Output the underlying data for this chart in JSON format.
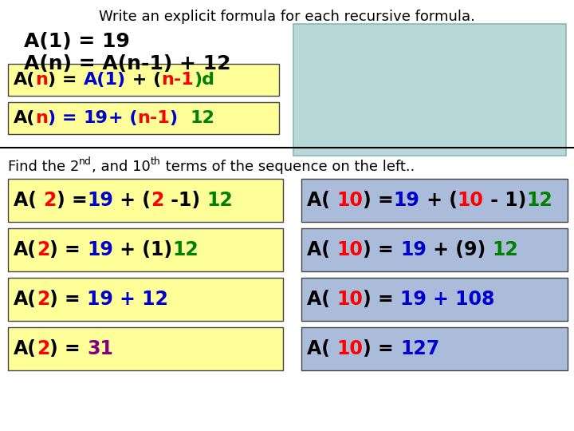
{
  "title": "Write an explicit formula for each recursive formula.",
  "bg_color": "#ffffff",
  "yellow_box_color": "#ffff99",
  "blue_box_color": "#aabcda",
  "light_blue_color": "#b8d8d8",
  "top_lines": [
    "A(1) = 19",
    "A(n) = A(n-1) + 12"
  ],
  "formula_box1_parts": [
    {
      "text": "A(",
      "color": "#000000"
    },
    {
      "text": "n",
      "color": "#ff0000"
    },
    {
      "text": ") = ",
      "color": "#000000"
    },
    {
      "text": "A(1)",
      "color": "#0000cc"
    },
    {
      "text": " + (",
      "color": "#000000"
    },
    {
      "text": "n-1",
      "color": "#ff0000"
    },
    {
      "text": ")d",
      "color": "#008000"
    }
  ],
  "formula_box2_parts": [
    {
      "text": "A(",
      "color": "#000000"
    },
    {
      "text": "n",
      "color": "#ff0000"
    },
    {
      "text": ") = ",
      "color": "#0000cc"
    },
    {
      "text": "19",
      "color": "#0000cc"
    },
    {
      "text": "+ (",
      "color": "#0000cc"
    },
    {
      "text": "n-1",
      "color": "#ff0000"
    },
    {
      "text": ")  ",
      "color": "#0000cc"
    },
    {
      "text": "12",
      "color": "#008000"
    }
  ],
  "left_boxes": [
    [
      {
        "text": "A( ",
        "color": "#000000"
      },
      {
        "text": "2",
        "color": "#ff0000"
      },
      {
        "text": ") =",
        "color": "#000000"
      },
      {
        "text": "19",
        "color": "#0000cc"
      },
      {
        "text": " + (",
        "color": "#000000"
      },
      {
        "text": "2",
        "color": "#ff0000"
      },
      {
        "text": " -1) ",
        "color": "#000000"
      },
      {
        "text": "12",
        "color": "#008000"
      }
    ],
    [
      {
        "text": "A(",
        "color": "#000000"
      },
      {
        "text": "2",
        "color": "#ff0000"
      },
      {
        "text": ") = ",
        "color": "#000000"
      },
      {
        "text": "19",
        "color": "#0000cc"
      },
      {
        "text": " + (1)",
        "color": "#000000"
      },
      {
        "text": "12",
        "color": "#008000"
      }
    ],
    [
      {
        "text": "A(",
        "color": "#000000"
      },
      {
        "text": "2",
        "color": "#ff0000"
      },
      {
        "text": ") = ",
        "color": "#000000"
      },
      {
        "text": "19 + 12",
        "color": "#0000cc"
      }
    ],
    [
      {
        "text": "A(",
        "color": "#000000"
      },
      {
        "text": "2",
        "color": "#ff0000"
      },
      {
        "text": ") = ",
        "color": "#000000"
      },
      {
        "text": "31",
        "color": "#800080"
      }
    ]
  ],
  "right_boxes": [
    [
      {
        "text": "A( ",
        "color": "#000000"
      },
      {
        "text": "10",
        "color": "#ff0000"
      },
      {
        "text": ") =",
        "color": "#000000"
      },
      {
        "text": "19",
        "color": "#0000cc"
      },
      {
        "text": " + (",
        "color": "#000000"
      },
      {
        "text": "10",
        "color": "#ff0000"
      },
      {
        "text": " - 1)",
        "color": "#000000"
      },
      {
        "text": "12",
        "color": "#008000"
      }
    ],
    [
      {
        "text": "A( ",
        "color": "#000000"
      },
      {
        "text": "10",
        "color": "#ff0000"
      },
      {
        "text": ") = ",
        "color": "#000000"
      },
      {
        "text": "19",
        "color": "#0000cc"
      },
      {
        "text": " + (9) ",
        "color": "#000000"
      },
      {
        "text": "12",
        "color": "#008000"
      }
    ],
    [
      {
        "text": "A( ",
        "color": "#000000"
      },
      {
        "text": "10",
        "color": "#ff0000"
      },
      {
        "text": ") = ",
        "color": "#000000"
      },
      {
        "text": "19 + 108",
        "color": "#0000cc"
      }
    ],
    [
      {
        "text": "A( ",
        "color": "#000000"
      },
      {
        "text": "10",
        "color": "#ff0000"
      },
      {
        "text": ") = ",
        "color": "#000000"
      },
      {
        "text": "127",
        "color": "#0000cc"
      }
    ]
  ]
}
